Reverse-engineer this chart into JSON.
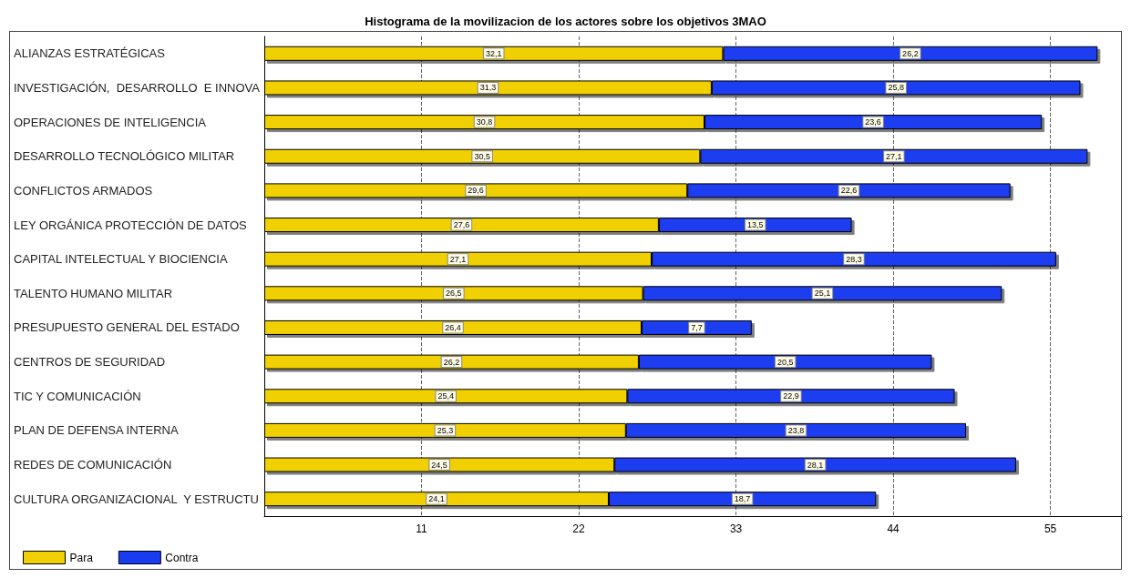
{
  "chart_data": {
    "type": "bar",
    "title": "Histograma de la movilizacion de los actores sobre los objetivos 3MAO",
    "orientation": "horizontal",
    "stacked": true,
    "categories": [
      "ALIANZAS ESTRATÉGICAS",
      "INVESTIGACIÓN,  DESARROLLO  E INNOVA",
      "OPERACIONES DE INTELIGENCIA",
      "DESARROLLO TECNOLÓGICO MILITAR",
      "CONFLICTOS ARMADOS",
      "LEY ORGÁNICA PROTECCIÓN DE DATOS",
      "CAPITAL INTELECTUAL Y BIOCIENCIA",
      "TALENTO HUMANO MILITAR",
      "PRESUPUESTO GENERAL DEL ESTADO",
      "CENTROS DE SEGURIDAD",
      "TIC Y COMUNICACIÓN",
      "PLAN DE DEFENSA INTERNA",
      "REDES DE COMUNICACIÓN",
      "CULTURA ORGANIZACIONAL  Y ESTRUCTU"
    ],
    "series": [
      {
        "name": "Para",
        "color": "#f0d000",
        "values": [
          32.1,
          31.3,
          30.8,
          30.5,
          29.6,
          27.6,
          27.1,
          26.5,
          26.4,
          26.2,
          25.4,
          25.3,
          24.5,
          24.1
        ],
        "value_labels": [
          "32,1",
          "31,3",
          "30,8",
          "30,5",
          "29,6",
          "27,6",
          "27,1",
          "26,5",
          "26,4",
          "26,2",
          "25,4",
          "25,3",
          "24,5",
          "24,1"
        ]
      },
      {
        "name": "Contra",
        "color": "#1a3cf0",
        "values": [
          26.2,
          25.8,
          23.6,
          27.1,
          22.6,
          13.5,
          28.3,
          25.1,
          7.7,
          20.5,
          22.9,
          23.8,
          28.1,
          18.7
        ],
        "value_labels": [
          "26,2",
          "25,8",
          "23,6",
          "27,1",
          "22,6",
          "13,5",
          "28,3",
          "25,1",
          "7,7",
          "20,5",
          "22,9",
          "23,8",
          "28,1",
          "18,7"
        ]
      }
    ],
    "xlim": [
      0,
      60
    ],
    "xticks": [
      11,
      22,
      33,
      44,
      55
    ],
    "grid": "x",
    "legend": "bottom left"
  }
}
